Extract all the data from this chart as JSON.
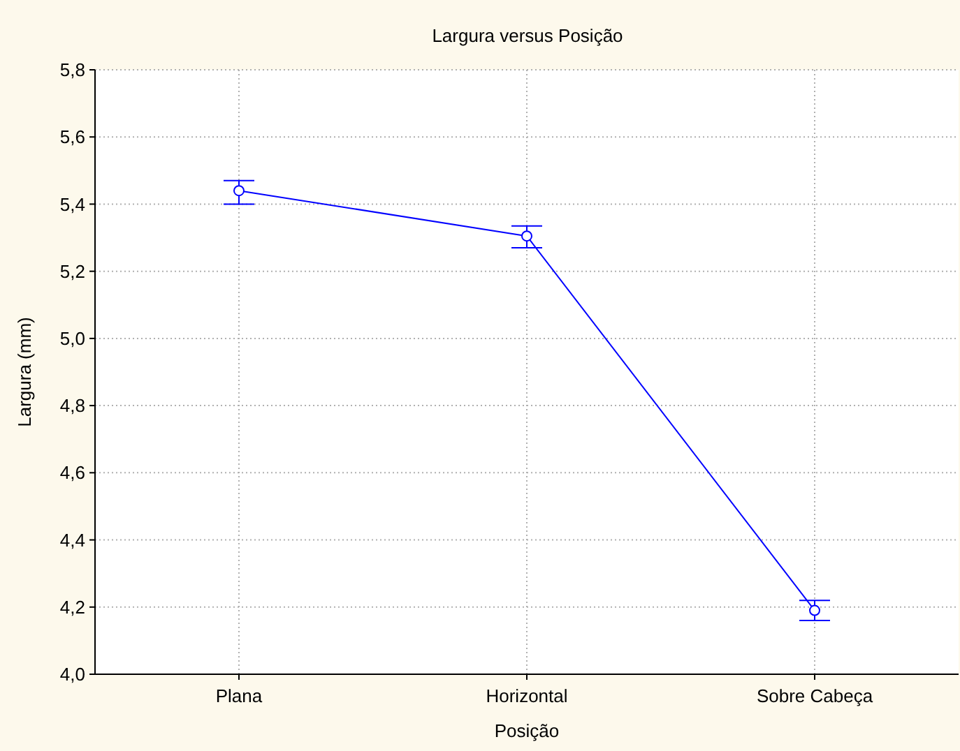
{
  "chart_data": {
    "type": "line",
    "title": "Largura versus Posição",
    "xlabel": "Posição",
    "ylabel": "Largura (mm)",
    "categories": [
      "Plana",
      "Horizontal",
      "Sobre Cabeça"
    ],
    "series": [
      {
        "color": "#0000ff",
        "values": [
          5.44,
          5.305,
          4.19
        ],
        "errors": [
          [
            5.4,
            5.47
          ],
          [
            5.27,
            5.335
          ],
          [
            4.16,
            4.22
          ]
        ]
      }
    ],
    "ylim": [
      4.0,
      5.8
    ],
    "yticks": [
      {
        "value": 4.0,
        "label": "4,0"
      },
      {
        "value": 4.2,
        "label": "4,2"
      },
      {
        "value": 4.4,
        "label": "4,4"
      },
      {
        "value": 4.6,
        "label": "4,6"
      },
      {
        "value": 4.8,
        "label": "4,8"
      },
      {
        "value": 5.0,
        "label": "5,0"
      },
      {
        "value": 5.2,
        "label": "5,2"
      },
      {
        "value": 5.4,
        "label": "5,4"
      },
      {
        "value": 5.6,
        "label": "5,6"
      },
      {
        "value": 5.8,
        "label": "5,8"
      }
    ],
    "grid": true,
    "marker": "circle",
    "line_style": "solid"
  }
}
